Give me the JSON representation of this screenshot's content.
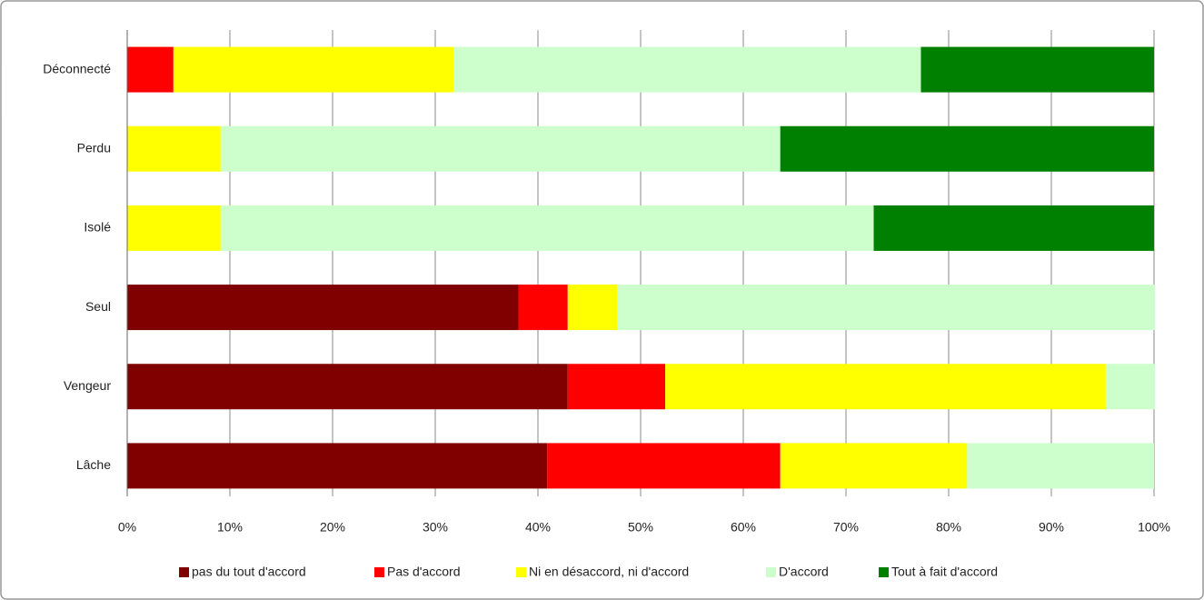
{
  "chart_data": {
    "type": "stacked-bar-horizontal",
    "categories": [
      "Déconnecté",
      "Perdu",
      "Isolé",
      "Seul",
      "Vengeur",
      "Lâche"
    ],
    "series": [
      {
        "name": "pas du tout d'accord",
        "color": "#800000",
        "values": [
          0,
          0,
          0,
          38.1,
          42.9,
          40.9
        ]
      },
      {
        "name": "Pas d'accord",
        "color": "#ff0000",
        "values": [
          4.5,
          0,
          0,
          4.8,
          9.5,
          22.7
        ]
      },
      {
        "name": "Ni en désaccord, ni d'accord",
        "color": "#ffff00",
        "values": [
          27.3,
          9.1,
          9.1,
          4.8,
          42.9,
          18.2
        ]
      },
      {
        "name": "D'accord",
        "color": "#ccffcc",
        "values": [
          45.5,
          54.5,
          63.6,
          52.4,
          4.8,
          18.2
        ]
      },
      {
        "name": "Tout à fait d'accord",
        "color": "#008000",
        "values": [
          22.7,
          36.4,
          27.3,
          0,
          0,
          0
        ]
      }
    ],
    "xlim": [
      0,
      100
    ],
    "xticks": [
      {
        "value": 0,
        "label": "0%"
      },
      {
        "value": 10,
        "label": "10%"
      },
      {
        "value": 20,
        "label": "20%"
      },
      {
        "value": 30,
        "label": "30%"
      },
      {
        "value": 40,
        "label": "40%"
      },
      {
        "value": 50,
        "label": "50%"
      },
      {
        "value": 60,
        "label": "60%"
      },
      {
        "value": 70,
        "label": "70%"
      },
      {
        "value": 80,
        "label": "80%"
      },
      {
        "value": 90,
        "label": "90%"
      },
      {
        "value": 100,
        "label": "100%"
      }
    ],
    "grid": true,
    "legend": "bottom"
  }
}
